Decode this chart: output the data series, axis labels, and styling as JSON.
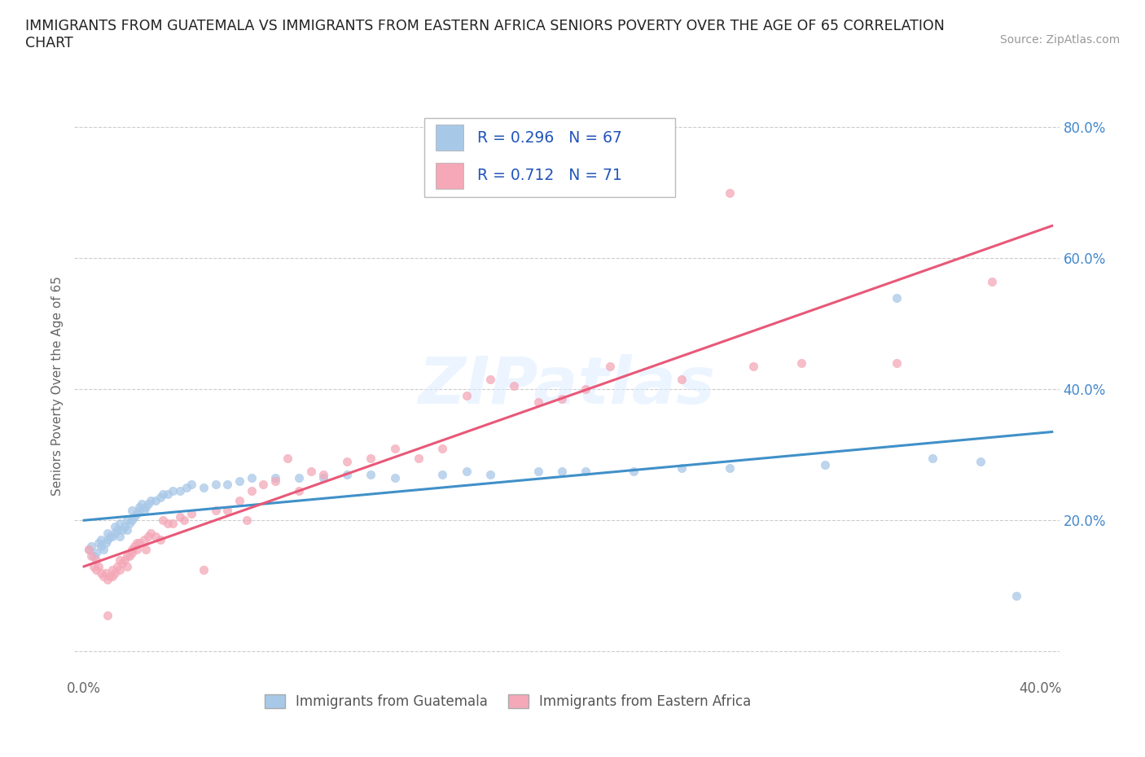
{
  "title": "IMMIGRANTS FROM GUATEMALA VS IMMIGRANTS FROM EASTERN AFRICA SENIORS POVERTY OVER THE AGE OF 65 CORRELATION\nCHART",
  "source": "Source: ZipAtlas.com",
  "ylabel": "Seniors Poverty Over the Age of 65",
  "R_guatemala": 0.296,
  "N_guatemala": 67,
  "R_eastern_africa": 0.712,
  "N_eastern_africa": 71,
  "color_guatemala": "#a8c8e8",
  "color_eastern_africa": "#f4a8b8",
  "line_color_guatemala": "#4090c8",
  "line_color_eastern_africa": "#e85878",
  "xlim_min": -0.004,
  "xlim_max": 0.408,
  "ylim_min": -0.04,
  "ylim_max": 0.85,
  "watermark": "ZIPatlas",
  "legend_label_1": "Immigrants from Guatemala",
  "legend_label_2": "Immigrants from Eastern Africa",
  "stat_color": "#2255bb",
  "grid_color": "#cccccc",
  "background_color": "#ffffff",
  "blue_x": [
    0.002,
    0.003,
    0.004,
    0.005,
    0.006,
    0.007,
    0.007,
    0.008,
    0.009,
    0.01,
    0.01,
    0.011,
    0.012,
    0.013,
    0.013,
    0.014,
    0.015,
    0.015,
    0.016,
    0.017,
    0.018,
    0.018,
    0.019,
    0.02,
    0.02,
    0.021,
    0.022,
    0.023,
    0.023,
    0.024,
    0.025,
    0.026,
    0.027,
    0.028,
    0.03,
    0.032,
    0.033,
    0.035,
    0.037,
    0.04,
    0.043,
    0.045,
    0.05,
    0.055,
    0.06,
    0.065,
    0.07,
    0.08,
    0.09,
    0.1,
    0.11,
    0.12,
    0.13,
    0.15,
    0.16,
    0.17,
    0.19,
    0.2,
    0.21,
    0.23,
    0.25,
    0.27,
    0.31,
    0.34,
    0.355,
    0.375,
    0.39
  ],
  "blue_y": [
    0.155,
    0.16,
    0.145,
    0.15,
    0.165,
    0.16,
    0.17,
    0.155,
    0.165,
    0.17,
    0.18,
    0.175,
    0.175,
    0.18,
    0.19,
    0.185,
    0.175,
    0.195,
    0.185,
    0.19,
    0.185,
    0.2,
    0.195,
    0.2,
    0.215,
    0.205,
    0.21,
    0.215,
    0.22,
    0.225,
    0.215,
    0.22,
    0.225,
    0.23,
    0.23,
    0.235,
    0.24,
    0.24,
    0.245,
    0.245,
    0.25,
    0.255,
    0.25,
    0.255,
    0.255,
    0.26,
    0.265,
    0.265,
    0.265,
    0.265,
    0.27,
    0.27,
    0.265,
    0.27,
    0.275,
    0.27,
    0.275,
    0.275,
    0.275,
    0.275,
    0.28,
    0.28,
    0.285,
    0.54,
    0.295,
    0.29,
    0.085
  ],
  "pink_x": [
    0.002,
    0.003,
    0.004,
    0.005,
    0.005,
    0.006,
    0.007,
    0.008,
    0.009,
    0.01,
    0.01,
    0.011,
    0.012,
    0.012,
    0.013,
    0.014,
    0.015,
    0.015,
    0.016,
    0.017,
    0.018,
    0.018,
    0.019,
    0.02,
    0.02,
    0.021,
    0.022,
    0.022,
    0.023,
    0.025,
    0.026,
    0.027,
    0.028,
    0.03,
    0.032,
    0.033,
    0.035,
    0.037,
    0.04,
    0.042,
    0.045,
    0.05,
    0.055,
    0.06,
    0.065,
    0.068,
    0.07,
    0.075,
    0.08,
    0.085,
    0.09,
    0.095,
    0.1,
    0.11,
    0.12,
    0.13,
    0.14,
    0.15,
    0.16,
    0.17,
    0.18,
    0.19,
    0.2,
    0.21,
    0.22,
    0.25,
    0.27,
    0.28,
    0.3,
    0.34,
    0.38
  ],
  "pink_y": [
    0.155,
    0.145,
    0.13,
    0.125,
    0.14,
    0.13,
    0.12,
    0.115,
    0.12,
    0.055,
    0.11,
    0.115,
    0.115,
    0.125,
    0.12,
    0.13,
    0.125,
    0.14,
    0.135,
    0.14,
    0.13,
    0.145,
    0.145,
    0.15,
    0.155,
    0.16,
    0.155,
    0.165,
    0.165,
    0.17,
    0.155,
    0.175,
    0.18,
    0.175,
    0.17,
    0.2,
    0.195,
    0.195,
    0.205,
    0.2,
    0.21,
    0.125,
    0.215,
    0.215,
    0.23,
    0.2,
    0.245,
    0.255,
    0.26,
    0.295,
    0.245,
    0.275,
    0.27,
    0.29,
    0.295,
    0.31,
    0.295,
    0.31,
    0.39,
    0.415,
    0.405,
    0.38,
    0.385,
    0.4,
    0.435,
    0.415,
    0.7,
    0.435,
    0.44,
    0.44,
    0.565
  ]
}
